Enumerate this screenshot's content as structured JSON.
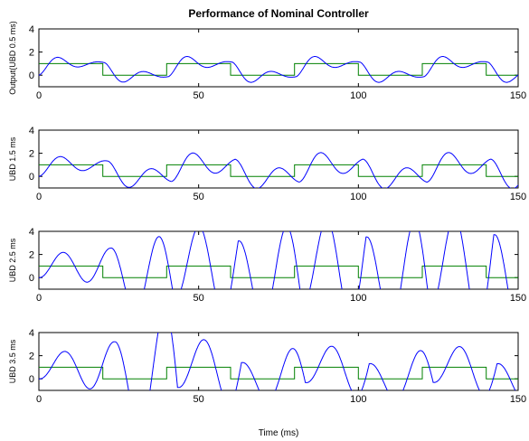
{
  "chart_data": {
    "type": "line",
    "title": "Performance of Nominal Controller",
    "xlabel": "Time (ms)",
    "xlim": [
      0,
      150
    ],
    "xticks": [
      0,
      50,
      100,
      150
    ],
    "reference_color": "#008000",
    "response_color": "#0000ff",
    "reference": {
      "segments": [
        [
          0,
          20,
          1
        ],
        [
          20,
          40,
          0
        ],
        [
          40,
          60,
          1
        ],
        [
          60,
          80,
          0
        ],
        [
          80,
          100,
          1
        ],
        [
          100,
          120,
          0
        ],
        [
          120,
          140,
          1
        ],
        [
          140,
          150,
          0
        ]
      ]
    },
    "panels": [
      {
        "ylabel": "Output(UBD 0.5 ms)",
        "ylim": [
          -1,
          4
        ],
        "yticks": [
          0,
          2,
          4
        ],
        "response": {
          "delay": 0.5,
          "peak": 1.35,
          "trough": -0.35,
          "growth": 1.0,
          "omega": 0.5,
          "decay": 0.1
        }
      },
      {
        "ylabel": "UBD 1.5 ms",
        "ylim": [
          -1,
          4
        ],
        "yticks": [
          0,
          2,
          4
        ],
        "response": {
          "delay": 1.5,
          "peak": 2.2,
          "trough": -1.1,
          "growth": 1.0,
          "omega": 0.45,
          "decay": 0.05
        }
      },
      {
        "ylabel": "UBD 2.5 ms",
        "ylim": [
          -1,
          4
        ],
        "yticks": [
          0,
          2,
          4
        ],
        "response": {
          "delay": 2.5,
          "peak": 3.1,
          "trough": -2.0,
          "growth": 1.55,
          "omega": 0.42,
          "decay": 0.0
        }
      },
      {
        "ylabel": "UBD 3.5 ms",
        "ylim": [
          -1,
          4
        ],
        "yticks": [
          0,
          2,
          4
        ],
        "response": {
          "delay": 3.5,
          "peak": 3.4,
          "trough": -2.0,
          "growth": 2.2,
          "omega": 0.4,
          "decay": 0.0
        }
      }
    ]
  }
}
